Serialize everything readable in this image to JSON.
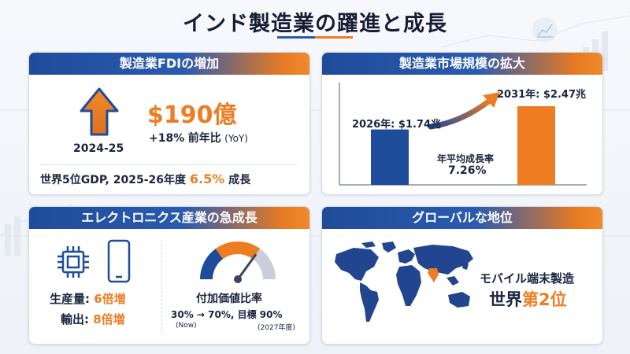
{
  "title": "インド製造業の躍進と成長",
  "colors": {
    "navy": "#1f4c9a",
    "orange": "#ee7d22",
    "text": "#1a2440"
  },
  "fdi": {
    "header": "製造業FDIの増加",
    "icon": "up-arrow-icon",
    "period": "2024-25",
    "amount": "$190億",
    "growth_pct": "+18%",
    "growth_label": "前年比",
    "growth_unit": "(YoY)",
    "gdp_text": "世界5位GDP, 2025-26年度",
    "gdp_value": "6.5%",
    "gdp_suffix": "成長"
  },
  "market": {
    "header": "製造業市場規模の拡大",
    "bar_2026_label": "2026年: $1.74兆",
    "bar_2031_label": "2031年: $2.47兆",
    "cagr_label": "年平均成長率",
    "cagr_value": "7.26%",
    "chart_data": {
      "type": "bar",
      "categories": [
        "2026年",
        "2031年"
      ],
      "values": [
        1.74,
        2.47
      ],
      "unit": "兆ドル"
    }
  },
  "electronics": {
    "header": "エレクトロニクス産業の急成長",
    "icons": [
      "chip-icon",
      "smartphone-icon",
      "gauge-icon"
    ],
    "production_label": "生産量:",
    "production_value": "6倍増",
    "export_label": "輸出:",
    "export_value": "8倍増",
    "gauge_title": "付加価値比率",
    "gauge_line": "30% → 70%, 目標 90%",
    "now_note": "(Now)",
    "target_note": "(2027年度)",
    "gauge_level_pct": 70
  },
  "global": {
    "header": "グローバルな地位",
    "icon": "world-map-icon",
    "line1": "モバイル端末製造",
    "line2_prefix": "世界",
    "line2_rank": "第2位"
  }
}
